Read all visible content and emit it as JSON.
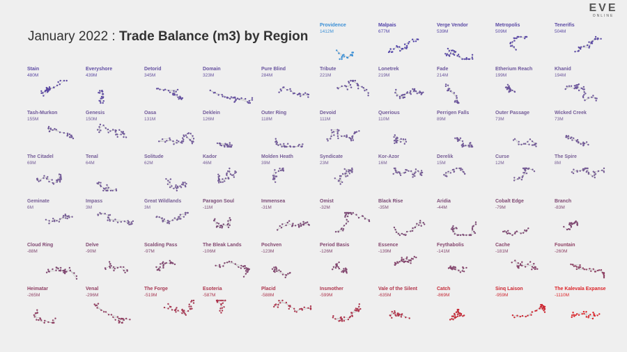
{
  "title": {
    "month": "January 2022",
    "sep": " : ",
    "metric": "Trade Balance (m3) by Region"
  },
  "logo": {
    "main": "EVE",
    "sub": "ONLINE"
  },
  "chart_data": {
    "type": "small-multiples",
    "title": "January 2022 : Trade Balance (m3) by Region",
    "unit": "m3",
    "regions": [
      {
        "name": "Providence",
        "label": "1412M",
        "value": 1412
      },
      {
        "name": "Malpais",
        "label": "677M",
        "value": 677
      },
      {
        "name": "Verge Vendor",
        "label": "539M",
        "value": 539
      },
      {
        "name": "Metropolis",
        "label": "509M",
        "value": 509
      },
      {
        "name": "Tenerifis",
        "label": "504M",
        "value": 504
      },
      {
        "name": "Stain",
        "label": "480M",
        "value": 480
      },
      {
        "name": "Everyshore",
        "label": "439M",
        "value": 439
      },
      {
        "name": "Detorid",
        "label": "345M",
        "value": 345
      },
      {
        "name": "Domain",
        "label": "323M",
        "value": 323
      },
      {
        "name": "Pure Blind",
        "label": "284M",
        "value": 284
      },
      {
        "name": "Tribute",
        "label": "221M",
        "value": 221
      },
      {
        "name": "Lonetrek",
        "label": "219M",
        "value": 219
      },
      {
        "name": "Fade",
        "label": "214M",
        "value": 214
      },
      {
        "name": "Etherium Reach",
        "label": "199M",
        "value": 199
      },
      {
        "name": "Khanid",
        "label": "194M",
        "value": 194
      },
      {
        "name": "Tash-Murkon",
        "label": "155M",
        "value": 155
      },
      {
        "name": "Genesis",
        "label": "150M",
        "value": 150
      },
      {
        "name": "Oasa",
        "label": "131M",
        "value": 131
      },
      {
        "name": "Deklein",
        "label": "126M",
        "value": 126
      },
      {
        "name": "Outer Ring",
        "label": "118M",
        "value": 118
      },
      {
        "name": "Devoid",
        "label": "111M",
        "value": 111
      },
      {
        "name": "Querious",
        "label": "110M",
        "value": 110
      },
      {
        "name": "Perrigen Falls",
        "label": "89M",
        "value": 89
      },
      {
        "name": "Outer Passage",
        "label": "73M",
        "value": 73
      },
      {
        "name": "Wicked Creek",
        "label": "73M",
        "value": 73
      },
      {
        "name": "The Citadel",
        "label": "69M",
        "value": 69
      },
      {
        "name": "Tenal",
        "label": "64M",
        "value": 64
      },
      {
        "name": "Solitude",
        "label": "62M",
        "value": 62
      },
      {
        "name": "Kador",
        "label": "46M",
        "value": 46
      },
      {
        "name": "Molden Heath",
        "label": "39M",
        "value": 39
      },
      {
        "name": "Syndicate",
        "label": "23M",
        "value": 23
      },
      {
        "name": "Kor-Azor",
        "label": "16M",
        "value": 16
      },
      {
        "name": "Derelik",
        "label": "15M",
        "value": 15
      },
      {
        "name": "Curse",
        "label": "12M",
        "value": 12
      },
      {
        "name": "The Spire",
        "label": "8M",
        "value": 8
      },
      {
        "name": "Geminate",
        "label": "6M",
        "value": 6
      },
      {
        "name": "Impass",
        "label": "3M",
        "value": 3
      },
      {
        "name": "Great Wildlands",
        "label": "3M",
        "value": 3
      },
      {
        "name": "Paragon Soul",
        "label": "-11M",
        "value": -11
      },
      {
        "name": "Immensea",
        "label": "-31M",
        "value": -31
      },
      {
        "name": "Omist",
        "label": "-32M",
        "value": -32
      },
      {
        "name": "Black Rise",
        "label": "-35M",
        "value": -35
      },
      {
        "name": "Aridia",
        "label": "-44M",
        "value": -44
      },
      {
        "name": "Cobalt Edge",
        "label": "-79M",
        "value": -79
      },
      {
        "name": "Branch",
        "label": "-83M",
        "value": -83
      },
      {
        "name": "Cloud Ring",
        "label": "-88M",
        "value": -88
      },
      {
        "name": "Delve",
        "label": "-90M",
        "value": -90
      },
      {
        "name": "Scalding Pass",
        "label": "-97M",
        "value": -97
      },
      {
        "name": "The Bleak Lands",
        "label": "-106M",
        "value": -106
      },
      {
        "name": "Pochven",
        "label": "-123M",
        "value": -123
      },
      {
        "name": "Period Basis",
        "label": "-126M",
        "value": -126
      },
      {
        "name": "Essence",
        "label": "-139M",
        "value": -139
      },
      {
        "name": "Feythabolis",
        "label": "-141M",
        "value": -141
      },
      {
        "name": "Cache",
        "label": "-181M",
        "value": -181
      },
      {
        "name": "Fountain",
        "label": "-260M",
        "value": -260
      },
      {
        "name": "Heimatar",
        "label": "-265M",
        "value": -265
      },
      {
        "name": "Venal",
        "label": "-296M",
        "value": -296
      },
      {
        "name": "The Forge",
        "label": "-519M",
        "value": -519
      },
      {
        "name": "Esoteria",
        "label": "-587M",
        "value": -587
      },
      {
        "name": "Placid",
        "label": "-588M",
        "value": -588
      },
      {
        "name": "Insmother",
        "label": "-599M",
        "value": -599
      },
      {
        "name": "Vale of the Silent",
        "label": "-635M",
        "value": -635
      },
      {
        "name": "Catch",
        "label": "-869M",
        "value": -869
      },
      {
        "name": "Sinq Laison",
        "label": "-959M",
        "value": -959
      },
      {
        "name": "The Kalevala Expanse",
        "label": "-1110M",
        "value": -1110
      }
    ]
  }
}
